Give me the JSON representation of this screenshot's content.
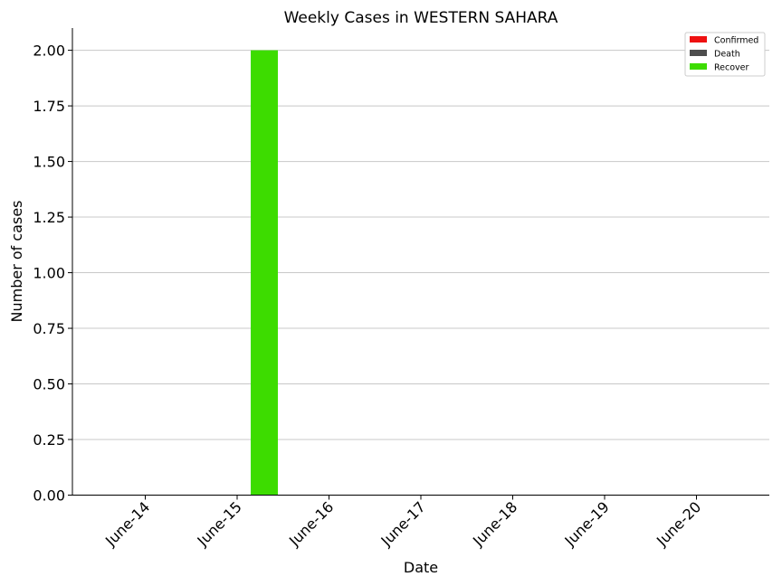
{
  "chart_data": {
    "type": "bar",
    "title": "Weekly Cases in WESTERN SAHARA",
    "xlabel": "Date",
    "ylabel": "Number of cases",
    "categories": [
      "June-14",
      "June-15",
      "June-16",
      "June-17",
      "June-18",
      "June-19",
      "June-20"
    ],
    "series": [
      {
        "name": "Confirmed",
        "color": "#ee1111",
        "values": [
          0,
          0,
          0,
          0,
          0,
          0,
          0
        ]
      },
      {
        "name": "Death",
        "color": "#4d4d4d",
        "values": [
          0,
          0,
          0,
          0,
          0,
          0,
          0
        ]
      },
      {
        "name": "Recover",
        "color": "#3ddc00",
        "values": [
          0,
          2,
          0,
          0,
          0,
          0,
          0
        ]
      }
    ],
    "ylim": [
      0,
      2.1
    ],
    "yticks": [
      "0.00",
      "0.25",
      "0.50",
      "0.75",
      "1.00",
      "1.25",
      "1.50",
      "1.75",
      "2.00"
    ],
    "grid": "horizontal",
    "legend": "top-right"
  }
}
